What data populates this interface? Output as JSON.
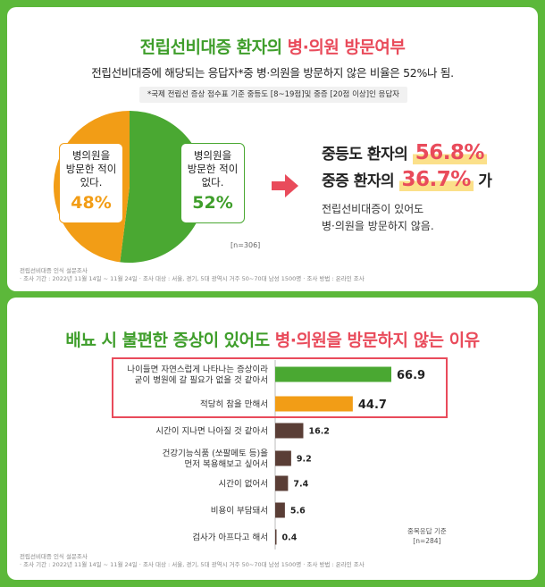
{
  "panel1": {
    "title_main": "전립선비대증 환자의 ",
    "title_accent": "병·의원 방문여부",
    "subtitle": "전립선비대증에 해당되는 응답자*중 병·의원을 방문하지 않은 비율은 52%나 됨.",
    "note": "*국제 전립선 증상 점수표 기준 중등도 [8~19점]및 중증 [20점 이상]인 응답자",
    "pie": {
      "left_label_lines": [
        "병의원을",
        "방문한 적이",
        "있다."
      ],
      "left_pct": "48%",
      "right_label_lines": [
        "병의원을",
        "방문한 적이",
        "없다."
      ],
      "right_pct": "52%",
      "n_note": "[n=306]",
      "colors": {
        "visited": "#f29d16",
        "not_visited": "#4aa832"
      }
    },
    "result": {
      "line1_prefix": "중등도 환자의",
      "line1_value": "56.8%",
      "line2_prefix": "중증 환자의",
      "line2_value": "36.7%",
      "line2_suffix": "가",
      "desc_lines": [
        "전립선비대증이 있어도",
        "병·의원을 방문하지 않음."
      ]
    },
    "source_lines": [
      "전립선비대증 인식 설문조사",
      "· 조사 기간 : 2022년 11월 14일 ~ 11월 24일 · 조사 대상 : 서울, 경기, 5대 광역시 거주 50~70대 남성 1500명 · 조사 방법 : 온라인 조사"
    ]
  },
  "panel2": {
    "title_main": "배뇨 시 불편한 증상이 있어도 ",
    "title_accent": "병·의원을 방문하지 않는 이유",
    "chart_note_lines": [
      "중복응답 기준",
      "[n=284]"
    ],
    "source_lines": [
      "전립선비대증 인식 설문조사",
      "· 조사 기간 : 2022년 11월 14일 ~ 11월 24일 · 조사 대상 : 서울, 경기, 5대 광역시 거주 50~70대 남성 1500명 · 조사 방법 : 온라인 조사"
    ]
  },
  "chart_data": [
    {
      "type": "pie",
      "title": "전립선비대증 환자의 병·의원 방문여부",
      "slices": [
        {
          "name": "병의원을 방문한 적이 있다.",
          "value": 48,
          "color": "#f29d16"
        },
        {
          "name": "병의원을 방문한 적이 없다.",
          "value": 52,
          "color": "#4aa832"
        }
      ]
    },
    {
      "type": "bar",
      "orientation": "horizontal",
      "title": "배뇨 시 불편한 증상이 있어도 병·의원을 방문하지 않는 이유",
      "categories": [
        [
          "나이들면 자연스럽게 나타나는 증상이라",
          "굳이 병원에 갈 필요가 없을 것 같아서"
        ],
        [
          "적당히 참을 만해서"
        ],
        [
          "시간이 지나면 나아질 것 같아서"
        ],
        [
          "건강기능식품 (쏘팔메토 등)을",
          "먼저 복용해보고 싶어서"
        ],
        [
          "시간이 없어서"
        ],
        [
          "비용이 부담돼서"
        ],
        [
          "검사가 아프다고 해서"
        ]
      ],
      "values": [
        66.9,
        44.7,
        16.2,
        9.2,
        7.4,
        5.6,
        0.4
      ],
      "value_labels": [
        "66.9",
        "44.7",
        "16.2",
        "9.2",
        "7.4",
        "5.6",
        "0.4"
      ],
      "colors": [
        "#4aa832",
        "#f29d16",
        "#5a3e36",
        "#5a3e36",
        "#5a3e36",
        "#5a3e36",
        "#5a3e36"
      ],
      "xlim": [
        0,
        70
      ]
    }
  ]
}
